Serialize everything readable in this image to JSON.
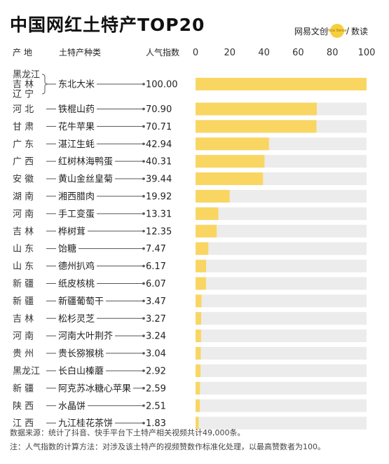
{
  "title": "中国网红土特产TOP20",
  "brand": {
    "left": "网易文创",
    "logo_text": "Nice Sense",
    "right": "数读"
  },
  "headers": {
    "province": "产  地",
    "product": "土特产种类",
    "index": "人气指数"
  },
  "colors": {
    "bar": "#f9d662",
    "track": "#ececec",
    "line": "#555555"
  },
  "chart_data": {
    "type": "bar",
    "orientation": "horizontal",
    "xlim": [
      0,
      100
    ],
    "xticks": [
      0,
      20,
      40,
      60,
      80,
      100
    ],
    "grid": false,
    "rows": [
      {
        "province": [
          "黑龙江",
          "吉  林",
          "辽  宁"
        ],
        "product": "东北大米",
        "value": 100.0,
        "label": "100.00"
      },
      {
        "province": [
          "河  北"
        ],
        "product": "铁棍山药",
        "value": 70.9,
        "label": "70.90"
      },
      {
        "province": [
          "甘  肃"
        ],
        "product": "花牛苹果",
        "value": 70.71,
        "label": "70.71"
      },
      {
        "province": [
          "广  东"
        ],
        "product": "湛江生蚝",
        "value": 42.94,
        "label": "42.94"
      },
      {
        "province": [
          "广  西"
        ],
        "product": "红树林海鸭蛋",
        "value": 40.31,
        "label": "40.31"
      },
      {
        "province": [
          "安  徽"
        ],
        "product": "黄山金丝皇菊",
        "value": 39.44,
        "label": "39.44"
      },
      {
        "province": [
          "湖  南"
        ],
        "product": "湘西腊肉",
        "value": 19.92,
        "label": "19.92"
      },
      {
        "province": [
          "河  南"
        ],
        "product": "手工变蛋",
        "value": 13.31,
        "label": "13.31"
      },
      {
        "province": [
          "吉  林"
        ],
        "product": "桦树茸",
        "value": 12.35,
        "label": "12.35"
      },
      {
        "province": [
          "山  东"
        ],
        "product": "饴糖",
        "value": 7.47,
        "label": "7.47"
      },
      {
        "province": [
          "山  东"
        ],
        "product": "德州扒鸡",
        "value": 6.17,
        "label": "6.17"
      },
      {
        "province": [
          "新  疆"
        ],
        "product": "纸皮核桃",
        "value": 6.07,
        "label": "6.07"
      },
      {
        "province": [
          "新  疆"
        ],
        "product": "新疆葡萄干",
        "value": 3.47,
        "label": "3.47"
      },
      {
        "province": [
          "吉  林"
        ],
        "product": "松杉灵芝",
        "value": 3.27,
        "label": "3.27"
      },
      {
        "province": [
          "河  南"
        ],
        "product": "河南大叶荆芥",
        "value": 3.24,
        "label": "3.24"
      },
      {
        "province": [
          "贵  州"
        ],
        "product": "贵长猕猴桃",
        "value": 3.04,
        "label": "3.04"
      },
      {
        "province": [
          "黑龙江"
        ],
        "product": "长白山榛蘑",
        "value": 2.92,
        "label": "2.92"
      },
      {
        "province": [
          "新  疆"
        ],
        "product": "阿克苏冰糖心苹果",
        "value": 2.59,
        "label": "2.59"
      },
      {
        "province": [
          "陕  西"
        ],
        "product": "水晶饼",
        "value": 2.51,
        "label": "2.51"
      },
      {
        "province": [
          "江  西"
        ],
        "product": "九江桂花茶饼",
        "value": 1.83,
        "label": "1.83"
      }
    ]
  },
  "footnotes": {
    "source": "数据来源：统计了抖音、快手平台下土特产相关视频共计49,000条。",
    "note": "注：人气指数的计算方法：对涉及该土特产的视频赞数作标准化处理，以最高赞数者为100。"
  }
}
